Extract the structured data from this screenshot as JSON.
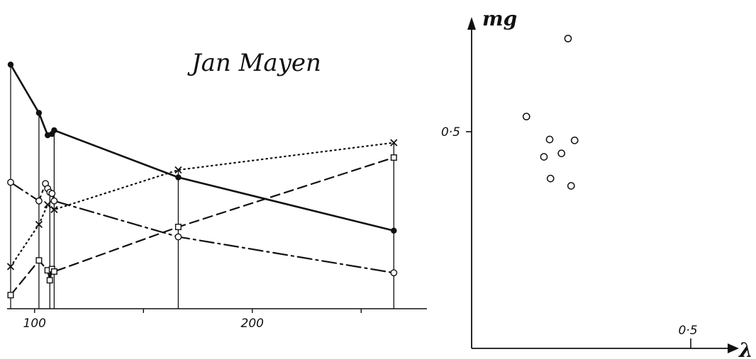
{
  "chart_data": [
    {
      "type": "line",
      "title": "Jan Mayen",
      "xlabel": "",
      "ylabel": "",
      "x_ticks_labeled": [
        "100",
        "200"
      ],
      "x_minor_ticks": [
        150,
        250
      ],
      "xlim": [
        88,
        280
      ],
      "ylim": [
        0,
        1
      ],
      "grid": false,
      "vertical_drop_lines_at": [
        89,
        102,
        107,
        109,
        166,
        265
      ],
      "series": [
        {
          "style": "solid",
          "marker": "filled-circle",
          "points": [
            [
              89,
              0.985
            ],
            [
              102,
              0.79
            ],
            [
              106,
              0.7
            ],
            [
              108,
              0.705
            ],
            [
              109,
              0.72
            ],
            [
              166,
              0.53
            ],
            [
              265,
              0.315
            ]
          ]
        },
        {
          "style": "dotted",
          "marker": "cross",
          "points": [
            [
              89,
              0.17
            ],
            [
              102,
              0.34
            ],
            [
              106,
              0.42
            ],
            [
              109,
              0.4
            ],
            [
              166,
              0.56
            ],
            [
              265,
              0.67
            ]
          ]
        },
        {
          "style": "dashed",
          "marker": "square",
          "points": [
            [
              89,
              0.055
            ],
            [
              102,
              0.195
            ],
            [
              106,
              0.155
            ],
            [
              107,
              0.115
            ],
            [
              108,
              0.16
            ],
            [
              109,
              0.15
            ],
            [
              166,
              0.33
            ],
            [
              265,
              0.61
            ]
          ]
        },
        {
          "style": "dash-dot",
          "marker": "open-circle",
          "points": [
            [
              89,
              0.51
            ],
            [
              102,
              0.435
            ],
            [
              105,
              0.505
            ],
            [
              106,
              0.485
            ],
            [
              107,
              0.47
            ],
            [
              108,
              0.465
            ],
            [
              109,
              0.435
            ],
            [
              166,
              0.29
            ],
            [
              265,
              0.145
            ]
          ]
        }
      ]
    },
    {
      "type": "scatter",
      "title": "",
      "xlabel": "λ",
      "ylabel": "mg",
      "x_tick_labels": [
        "0·5"
      ],
      "y_tick_labels": [
        "0·5"
      ],
      "x_ticks": [
        0.5
      ],
      "y_ticks": [
        0.5
      ],
      "xlim": [
        0,
        0.55
      ],
      "ylim": [
        0,
        0.75
      ],
      "marker": "open-circle",
      "points": [
        [
          0.22,
          0.715
        ],
        [
          0.125,
          0.535
        ],
        [
          0.178,
          0.482
        ],
        [
          0.235,
          0.48
        ],
        [
          0.165,
          0.442
        ],
        [
          0.205,
          0.45
        ],
        [
          0.18,
          0.392
        ],
        [
          0.227,
          0.375
        ]
      ]
    }
  ]
}
